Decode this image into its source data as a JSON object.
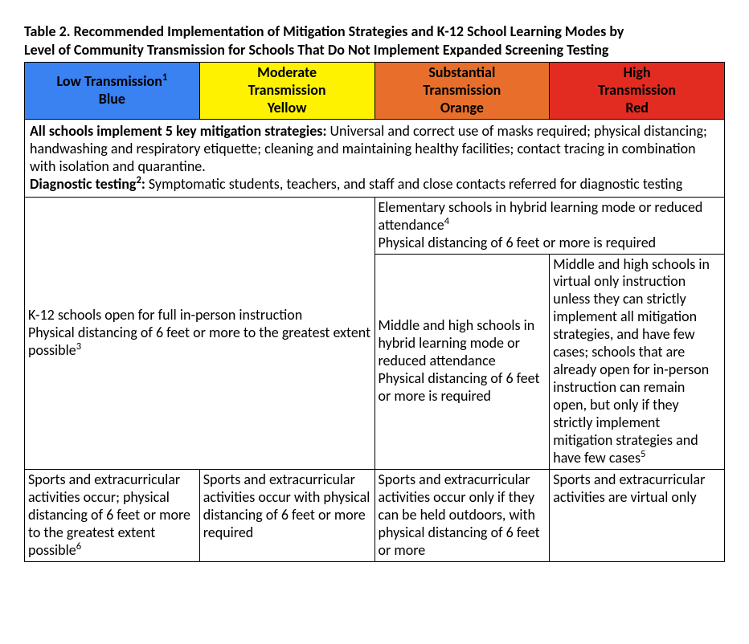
{
  "title_line1": "Table 2. Recommended Implementation of Mitigation Strategies and K-12 School Learning Modes by",
  "title_line2": "Level of Community Transmission for Schools That Do Not Implement Expanded Screening Testing",
  "headers": [
    {
      "line1_pre": "Low Transmission",
      "line1_sup": "1",
      "line2": "Blue",
      "bg": "#3a81f1"
    },
    {
      "line1_pre": "Moderate",
      "line1_sup": "",
      "line2": "Transmission",
      "line3": "Yellow",
      "bg": "#fff200"
    },
    {
      "line1_pre": "Substantial",
      "line1_sup": "",
      "line2": "Transmission",
      "line3": "Orange",
      "bg": "#e86f2b"
    },
    {
      "line1_pre": "High",
      "line1_sup": "",
      "line2": "Transmission",
      "line3": "Red",
      "bg": "#e22b21"
    }
  ],
  "mitigation": {
    "bold1": "All schools implement 5 key mitigation strategies: ",
    "body1": "Universal and correct use of masks required; physical distancing; handwashing and respiratory etiquette; cleaning and maintaining healthy facilities; contact tracing in combination with isolation and quarantine.",
    "bold2_pre": "Diagnostic testing",
    "bold2_sup": "2",
    "bold2_post": ": ",
    "body2": "Symptomatic students, teachers, and staff and close contacts referred for diagnostic testing"
  },
  "row_elem": {
    "pre": "Elementary schools in hybrid learning mode or reduced attendance",
    "sup": "4",
    "line2": "Physical distancing of 6 feet or more is required"
  },
  "cell_k12": {
    "line1": "K-12 schools open for full in-person instruction",
    "line2_pre": "Physical distancing of 6 feet or more to the greatest extent possible",
    "line2_sup": "3"
  },
  "cell_middle_sub": "Middle and high schools in hybrid learning mode or reduced attendance\nPhysical distancing of 6 feet or more is required",
  "cell_middle_high": {
    "pre": "Middle and high schools in virtual only instruction unless they can strictly implement all mitigation strategies, and have few cases; schools that are already open for in-person instruction can remain open, but only if they strictly implement mitigation strategies and have few cases",
    "sup": "5"
  },
  "sports": {
    "low_pre": "Sports and extracurricular activities occur; physical distancing of 6 feet or more to the greatest extent possible",
    "low_sup": "6",
    "mod": "Sports and extracurricular activities occur with physical distancing of 6 feet or more required",
    "sub": "Sports and extracurricular activities occur only if they can be held outdoors, with physical distancing of 6 feet or more",
    "high": "Sports and extracurricular activities are virtual only"
  },
  "col_widths": [
    "25%",
    "25%",
    "25%",
    "25%"
  ]
}
